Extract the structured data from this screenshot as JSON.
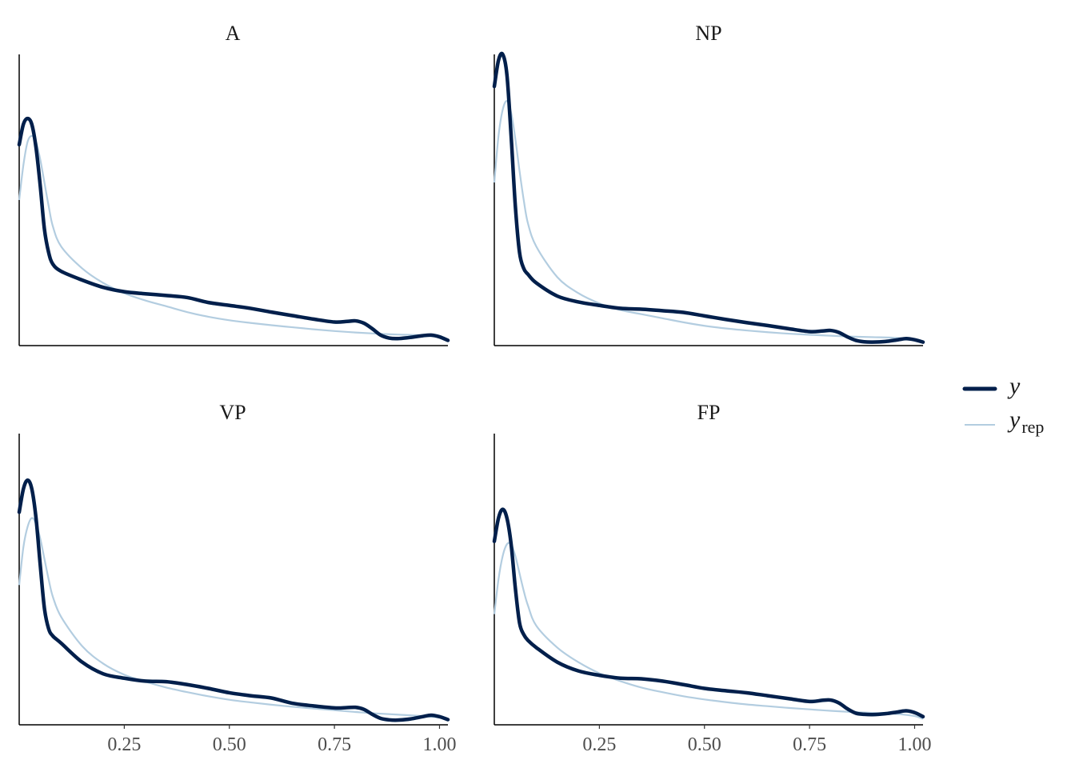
{
  "chart_data": {
    "type": "line",
    "colors": {
      "y": "#011f4b",
      "yrep": "#b3cde0"
    },
    "xlim": [
      0,
      1.02
    ],
    "x_ticks": [
      0.25,
      0.5,
      0.75,
      1.0
    ],
    "x_tick_labels": [
      "0.25",
      "0.50",
      "0.75",
      "1.00"
    ],
    "grid": false,
    "legend": {
      "position": "right",
      "y_label": "y",
      "yrep_label": "y",
      "yrep_subscript": "rep"
    },
    "panels": [
      {
        "title": "A",
        "ylim": [
          0,
          1
        ],
        "y": [
          [
            0,
            0.69
          ],
          [
            0.01,
            0.76
          ],
          [
            0.02,
            0.78
          ],
          [
            0.03,
            0.76
          ],
          [
            0.04,
            0.68
          ],
          [
            0.05,
            0.55
          ],
          [
            0.06,
            0.4
          ],
          [
            0.07,
            0.32
          ],
          [
            0.08,
            0.28
          ],
          [
            0.1,
            0.255
          ],
          [
            0.15,
            0.225
          ],
          [
            0.2,
            0.2
          ],
          [
            0.25,
            0.185
          ],
          [
            0.3,
            0.178
          ],
          [
            0.35,
            0.172
          ],
          [
            0.4,
            0.165
          ],
          [
            0.45,
            0.148
          ],
          [
            0.5,
            0.138
          ],
          [
            0.55,
            0.128
          ],
          [
            0.6,
            0.115
          ],
          [
            0.65,
            0.103
          ],
          [
            0.7,
            0.091
          ],
          [
            0.75,
            0.081
          ],
          [
            0.78,
            0.083
          ],
          [
            0.8,
            0.085
          ],
          [
            0.82,
            0.077
          ],
          [
            0.84,
            0.058
          ],
          [
            0.86,
            0.036
          ],
          [
            0.88,
            0.026
          ],
          [
            0.9,
            0.024
          ],
          [
            0.93,
            0.028
          ],
          [
            0.96,
            0.034
          ],
          [
            0.98,
            0.036
          ],
          [
            1.0,
            0.03
          ],
          [
            1.02,
            0.018
          ]
        ],
        "yrep": [
          [
            0,
            0.5
          ],
          [
            0.01,
            0.62
          ],
          [
            0.02,
            0.7
          ],
          [
            0.03,
            0.72
          ],
          [
            0.04,
            0.7
          ],
          [
            0.05,
            0.64
          ],
          [
            0.06,
            0.56
          ],
          [
            0.07,
            0.48
          ],
          [
            0.08,
            0.41
          ],
          [
            0.1,
            0.34
          ],
          [
            0.15,
            0.265
          ],
          [
            0.2,
            0.215
          ],
          [
            0.25,
            0.18
          ],
          [
            0.3,
            0.155
          ],
          [
            0.35,
            0.135
          ],
          [
            0.4,
            0.115
          ],
          [
            0.45,
            0.099
          ],
          [
            0.5,
            0.087
          ],
          [
            0.55,
            0.078
          ],
          [
            0.6,
            0.07
          ],
          [
            0.65,
            0.063
          ],
          [
            0.7,
            0.056
          ],
          [
            0.75,
            0.05
          ],
          [
            0.8,
            0.045
          ],
          [
            0.85,
            0.041
          ],
          [
            0.9,
            0.038
          ],
          [
            0.95,
            0.036
          ],
          [
            1.0,
            0.03
          ],
          [
            1.02,
            0.02
          ]
        ]
      },
      {
        "title": "NP",
        "ylim": [
          0,
          1
        ],
        "y": [
          [
            0,
            0.89
          ],
          [
            0.01,
            0.98
          ],
          [
            0.02,
            1.0
          ],
          [
            0.03,
            0.93
          ],
          [
            0.04,
            0.72
          ],
          [
            0.05,
            0.48
          ],
          [
            0.06,
            0.32
          ],
          [
            0.07,
            0.265
          ],
          [
            0.08,
            0.245
          ],
          [
            0.1,
            0.215
          ],
          [
            0.15,
            0.17
          ],
          [
            0.2,
            0.15
          ],
          [
            0.25,
            0.138
          ],
          [
            0.3,
            0.128
          ],
          [
            0.35,
            0.125
          ],
          [
            0.4,
            0.12
          ],
          [
            0.45,
            0.114
          ],
          [
            0.5,
            0.102
          ],
          [
            0.55,
            0.09
          ],
          [
            0.6,
            0.079
          ],
          [
            0.65,
            0.069
          ],
          [
            0.7,
            0.058
          ],
          [
            0.75,
            0.048
          ],
          [
            0.78,
            0.05
          ],
          [
            0.8,
            0.052
          ],
          [
            0.82,
            0.045
          ],
          [
            0.84,
            0.03
          ],
          [
            0.86,
            0.018
          ],
          [
            0.88,
            0.013
          ],
          [
            0.9,
            0.012
          ],
          [
            0.93,
            0.014
          ],
          [
            0.96,
            0.02
          ],
          [
            0.98,
            0.024
          ],
          [
            1.0,
            0.02
          ],
          [
            1.02,
            0.012
          ]
        ],
        "yrep": [
          [
            0,
            0.56
          ],
          [
            0.01,
            0.72
          ],
          [
            0.02,
            0.81
          ],
          [
            0.03,
            0.84
          ],
          [
            0.04,
            0.8
          ],
          [
            0.05,
            0.71
          ],
          [
            0.06,
            0.6
          ],
          [
            0.07,
            0.5
          ],
          [
            0.08,
            0.42
          ],
          [
            0.1,
            0.34
          ],
          [
            0.15,
            0.235
          ],
          [
            0.2,
            0.18
          ],
          [
            0.25,
            0.145
          ],
          [
            0.3,
            0.122
          ],
          [
            0.35,
            0.108
          ],
          [
            0.4,
            0.094
          ],
          [
            0.45,
            0.08
          ],
          [
            0.5,
            0.068
          ],
          [
            0.55,
            0.059
          ],
          [
            0.6,
            0.052
          ],
          [
            0.65,
            0.046
          ],
          [
            0.7,
            0.041
          ],
          [
            0.75,
            0.037
          ],
          [
            0.8,
            0.034
          ],
          [
            0.85,
            0.031
          ],
          [
            0.9,
            0.029
          ],
          [
            0.95,
            0.027
          ],
          [
            1.0,
            0.022
          ],
          [
            1.02,
            0.015
          ]
        ]
      },
      {
        "title": "VP",
        "ylim": [
          0,
          1
        ],
        "y": [
          [
            0,
            0.73
          ],
          [
            0.01,
            0.81
          ],
          [
            0.02,
            0.84
          ],
          [
            0.03,
            0.81
          ],
          [
            0.04,
            0.71
          ],
          [
            0.05,
            0.55
          ],
          [
            0.06,
            0.4
          ],
          [
            0.07,
            0.33
          ],
          [
            0.08,
            0.305
          ],
          [
            0.1,
            0.28
          ],
          [
            0.15,
            0.215
          ],
          [
            0.2,
            0.175
          ],
          [
            0.25,
            0.16
          ],
          [
            0.3,
            0.15
          ],
          [
            0.35,
            0.148
          ],
          [
            0.4,
            0.138
          ],
          [
            0.45,
            0.125
          ],
          [
            0.5,
            0.11
          ],
          [
            0.55,
            0.1
          ],
          [
            0.6,
            0.092
          ],
          [
            0.65,
            0.074
          ],
          [
            0.7,
            0.065
          ],
          [
            0.75,
            0.058
          ],
          [
            0.78,
            0.059
          ],
          [
            0.8,
            0.06
          ],
          [
            0.82,
            0.053
          ],
          [
            0.84,
            0.036
          ],
          [
            0.86,
            0.022
          ],
          [
            0.88,
            0.017
          ],
          [
            0.9,
            0.016
          ],
          [
            0.93,
            0.02
          ],
          [
            0.96,
            0.028
          ],
          [
            0.98,
            0.033
          ],
          [
            1.0,
            0.028
          ],
          [
            1.02,
            0.018
          ]
        ],
        "yrep": [
          [
            0,
            0.48
          ],
          [
            0.01,
            0.61
          ],
          [
            0.02,
            0.68
          ],
          [
            0.03,
            0.71
          ],
          [
            0.04,
            0.69
          ],
          [
            0.05,
            0.64
          ],
          [
            0.06,
            0.57
          ],
          [
            0.07,
            0.5
          ],
          [
            0.08,
            0.44
          ],
          [
            0.1,
            0.37
          ],
          [
            0.15,
            0.27
          ],
          [
            0.2,
            0.21
          ],
          [
            0.25,
            0.172
          ],
          [
            0.3,
            0.148
          ],
          [
            0.35,
            0.128
          ],
          [
            0.4,
            0.112
          ],
          [
            0.45,
            0.098
          ],
          [
            0.5,
            0.086
          ],
          [
            0.55,
            0.077
          ],
          [
            0.6,
            0.069
          ],
          [
            0.65,
            0.062
          ],
          [
            0.7,
            0.056
          ],
          [
            0.75,
            0.05
          ],
          [
            0.8,
            0.044
          ],
          [
            0.85,
            0.039
          ],
          [
            0.9,
            0.035
          ],
          [
            0.95,
            0.031
          ],
          [
            1.0,
            0.025
          ],
          [
            1.02,
            0.018
          ]
        ]
      },
      {
        "title": "FP",
        "ylim": [
          0,
          1
        ],
        "y": [
          [
            0,
            0.63
          ],
          [
            0.01,
            0.71
          ],
          [
            0.02,
            0.74
          ],
          [
            0.03,
            0.71
          ],
          [
            0.04,
            0.62
          ],
          [
            0.05,
            0.47
          ],
          [
            0.06,
            0.35
          ],
          [
            0.07,
            0.31
          ],
          [
            0.08,
            0.29
          ],
          [
            0.1,
            0.265
          ],
          [
            0.15,
            0.215
          ],
          [
            0.2,
            0.185
          ],
          [
            0.25,
            0.17
          ],
          [
            0.3,
            0.16
          ],
          [
            0.35,
            0.158
          ],
          [
            0.4,
            0.15
          ],
          [
            0.45,
            0.138
          ],
          [
            0.5,
            0.125
          ],
          [
            0.55,
            0.117
          ],
          [
            0.6,
            0.11
          ],
          [
            0.65,
            0.1
          ],
          [
            0.7,
            0.09
          ],
          [
            0.75,
            0.08
          ],
          [
            0.78,
            0.084
          ],
          [
            0.8,
            0.085
          ],
          [
            0.82,
            0.075
          ],
          [
            0.84,
            0.055
          ],
          [
            0.86,
            0.04
          ],
          [
            0.88,
            0.036
          ],
          [
            0.9,
            0.035
          ],
          [
            0.93,
            0.038
          ],
          [
            0.96,
            0.044
          ],
          [
            0.98,
            0.048
          ],
          [
            1.0,
            0.042
          ],
          [
            1.02,
            0.028
          ]
        ],
        "yrep": [
          [
            0,
            0.38
          ],
          [
            0.01,
            0.5
          ],
          [
            0.02,
            0.58
          ],
          [
            0.03,
            0.62
          ],
          [
            0.04,
            0.62
          ],
          [
            0.05,
            0.58
          ],
          [
            0.06,
            0.52
          ],
          [
            0.07,
            0.46
          ],
          [
            0.08,
            0.41
          ],
          [
            0.1,
            0.34
          ],
          [
            0.15,
            0.265
          ],
          [
            0.2,
            0.215
          ],
          [
            0.25,
            0.177
          ],
          [
            0.3,
            0.15
          ],
          [
            0.35,
            0.128
          ],
          [
            0.4,
            0.112
          ],
          [
            0.45,
            0.098
          ],
          [
            0.5,
            0.087
          ],
          [
            0.55,
            0.078
          ],
          [
            0.6,
            0.07
          ],
          [
            0.65,
            0.064
          ],
          [
            0.7,
            0.058
          ],
          [
            0.75,
            0.053
          ],
          [
            0.8,
            0.048
          ],
          [
            0.85,
            0.044
          ],
          [
            0.9,
            0.041
          ],
          [
            0.95,
            0.038
          ],
          [
            1.0,
            0.03
          ],
          [
            1.02,
            0.02
          ]
        ]
      }
    ]
  }
}
